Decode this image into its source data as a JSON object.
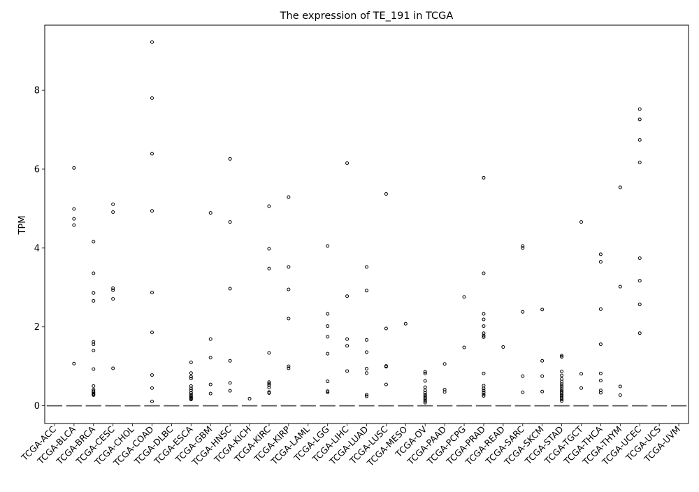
{
  "chart_data": {
    "type": "box",
    "title": "The expression of TE_191 in TCGA",
    "xlabel": "",
    "ylabel": "TPM",
    "ylim": [
      -0.45,
      9.65
    ],
    "yticks": [
      0,
      2,
      4,
      6,
      8
    ],
    "categories": [
      "TCGA-ACC",
      "TCGA-BLCA",
      "TCGA-BRCA",
      "TCGA-CESC",
      "TCGA-CHOL",
      "TCGA-COAD",
      "TCGA-DLBC",
      "TCGA-ESCA",
      "TCGA-GBM",
      "TCGA-HNSC",
      "TCGA-KICH",
      "TCGA-KIRC",
      "TCGA-KIRP",
      "TCGA-LAML",
      "TCGA-LGG",
      "TCGA-LIHC",
      "TCGA-LUAD",
      "TCGA-LUSC",
      "TCGA-MESO",
      "TCGA-OV",
      "TCGA-PAAD",
      "TCGA-PCPG",
      "TCGA-PRAD",
      "TCGA-READ",
      "TCGA-SARC",
      "TCGA-SKCM",
      "TCGA-STAD",
      "TCGA-TGCT",
      "TCGA-THCA",
      "TCGA-THYM",
      "TCGA-UCEC",
      "TCGA-UCS",
      "TCGA-UVM"
    ],
    "median": [
      0,
      0,
      0,
      0,
      0,
      0,
      0,
      0,
      0,
      0,
      0,
      0,
      0,
      0,
      0,
      0,
      0,
      0,
      0,
      0,
      0,
      0,
      0,
      0,
      0,
      0,
      0,
      0,
      0,
      0,
      0,
      0,
      0
    ],
    "outliers": [
      [],
      [
        6.03,
        4.99,
        4.74,
        4.58,
        1.07
      ],
      [
        4.16,
        3.36,
        2.86,
        2.66,
        1.62,
        1.56,
        1.4,
        0.93,
        0.5,
        0.41,
        0.37,
        0.34,
        0.31,
        0.29,
        0.27
      ],
      [
        5.11,
        4.91,
        2.98,
        2.93,
        2.71,
        0.95
      ],
      [],
      [
        9.22,
        7.8,
        6.39,
        4.94,
        2.87,
        1.86,
        0.78,
        0.45,
        0.11
      ],
      [],
      [
        1.1,
        0.83,
        0.74,
        0.69,
        0.5,
        0.44,
        0.39,
        0.33,
        0.29,
        0.25,
        0.22,
        0.2,
        0.18,
        0.16
      ],
      [
        4.89,
        1.69,
        1.22,
        0.54,
        0.31
      ],
      [
        6.26,
        4.66,
        2.97,
        1.14,
        0.58,
        0.38
      ],
      [
        0.18
      ],
      [
        5.06,
        3.98,
        3.48,
        1.34,
        0.6,
        0.56,
        0.52,
        0.46,
        0.35,
        0.32
      ],
      [
        5.29,
        3.52,
        2.95,
        2.21,
        1.0,
        0.95
      ],
      [],
      [
        4.05,
        2.33,
        2.02,
        1.75,
        1.32,
        0.62,
        0.37,
        0.34
      ],
      [
        6.15,
        2.78,
        1.69,
        1.52,
        0.88
      ],
      [
        3.52,
        2.92,
        1.67,
        1.36,
        0.94,
        0.83,
        0.28,
        0.24
      ],
      [
        5.37,
        1.96,
        1.01,
        0.99,
        0.54
      ],
      [
        2.08
      ],
      [
        0.86,
        0.82,
        0.63,
        0.47,
        0.39,
        0.33,
        0.28,
        0.24,
        0.2,
        0.16,
        0.12,
        0.08
      ],
      [
        1.06,
        0.41,
        0.35
      ],
      [
        2.76,
        1.48
      ],
      [
        5.78,
        3.36,
        2.33,
        2.19,
        2.02,
        1.84,
        1.78,
        1.74,
        0.82,
        0.51,
        0.44,
        0.39,
        0.34,
        0.29,
        0.25
      ],
      [
        1.49
      ],
      [
        4.05,
        4.0,
        2.38,
        0.75,
        0.34
      ],
      [
        2.44,
        1.14,
        0.75,
        0.36
      ],
      [
        1.27,
        1.24,
        0.87,
        0.77,
        0.68,
        0.61,
        0.55,
        0.5,
        0.45,
        0.4,
        0.36,
        0.32,
        0.28,
        0.24,
        0.2,
        0.16,
        0.12
      ],
      [
        4.66,
        0.81,
        0.45
      ],
      [
        3.84,
        3.65,
        2.45,
        1.56,
        0.82,
        0.64,
        0.39,
        0.33
      ],
      [
        5.54,
        3.02,
        0.49,
        0.27
      ],
      [
        7.52,
        7.26,
        6.74,
        6.17,
        3.74,
        3.17,
        2.57,
        1.84
      ],
      [],
      []
    ]
  }
}
